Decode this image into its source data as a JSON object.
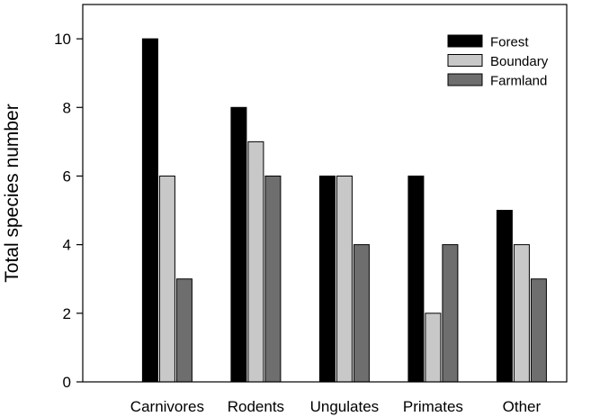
{
  "chart_data": {
    "type": "bar",
    "title": "",
    "xlabel": "",
    "ylabel": "Total species number",
    "ylim": [
      0,
      11
    ],
    "yticks": [
      0,
      2,
      4,
      6,
      8,
      10
    ],
    "grid": false,
    "legend_position": "top-right",
    "categories": [
      "Carnivores",
      "Rodents",
      "Ungulates",
      "Primates",
      "Other"
    ],
    "series": [
      {
        "name": "Forest",
        "color": "#000000",
        "values": [
          10,
          8,
          6,
          6,
          5
        ]
      },
      {
        "name": "Boundary",
        "color": "#c8c8c8",
        "values": [
          6,
          7,
          6,
          2,
          4
        ]
      },
      {
        "name": "Farmland",
        "color": "#6e6e6e",
        "values": [
          3,
          6,
          4,
          4,
          3
        ]
      }
    ]
  }
}
